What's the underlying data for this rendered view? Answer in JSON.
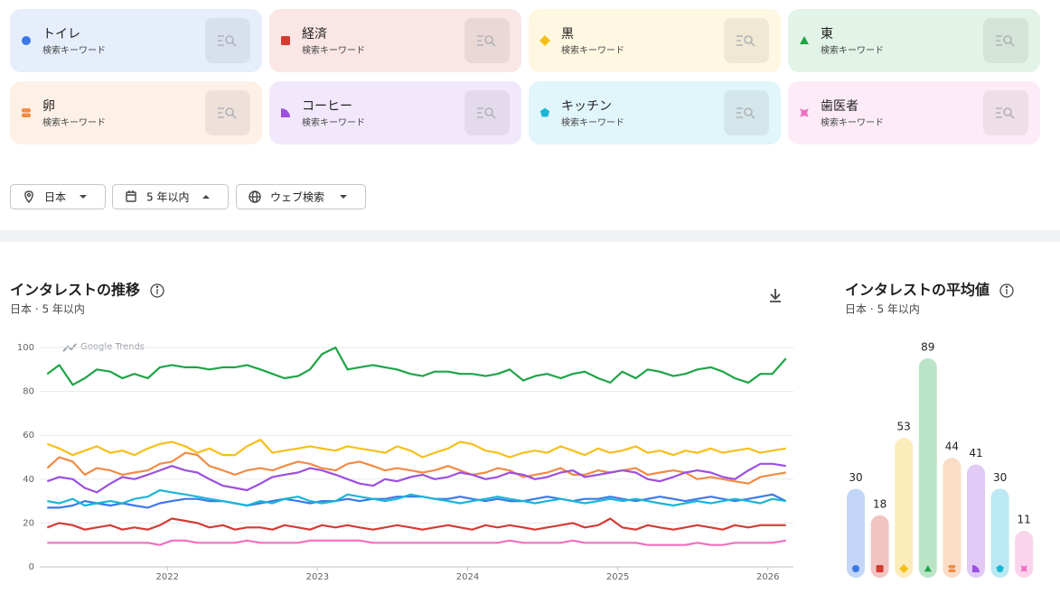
{
  "search_terms_subtitle": "検索キーワード",
  "filters": [
    "日本",
    "5 年以内",
    "ウェブ検索"
  ],
  "chart_data": [
    {
      "type": "line",
      "title": "インタレストの推移",
      "subtitle": "日本 · 5 年以内",
      "watermark": "Google Trends",
      "x": [
        2021.2,
        2021.28,
        2021.37,
        2021.45,
        2021.53,
        2021.62,
        2021.7,
        2021.78,
        2021.87,
        2021.95,
        2022.03,
        2022.12,
        2022.2,
        2022.28,
        2022.37,
        2022.45,
        2022.53,
        2022.62,
        2022.7,
        2022.78,
        2022.87,
        2022.95,
        2023.03,
        2023.12,
        2023.2,
        2023.28,
        2023.37,
        2023.45,
        2023.53,
        2023.62,
        2023.7,
        2023.78,
        2023.87,
        2023.95,
        2024.03,
        2024.12,
        2024.2,
        2024.28,
        2024.37,
        2024.45,
        2024.53,
        2024.62,
        2024.7,
        2024.78,
        2024.87,
        2024.95,
        2025.03,
        2025.12,
        2025.2,
        2025.28,
        2025.37,
        2025.45,
        2025.53,
        2025.62,
        2025.7,
        2025.78,
        2025.87,
        2025.95,
        2026.03,
        2026.12
      ],
      "xlim": [
        2021.15,
        2026.17
      ],
      "xticks": [
        2022,
        2023,
        2024,
        2025,
        2026
      ],
      "ylim": [
        0,
        100
      ],
      "yticks": [
        0,
        20,
        40,
        60,
        80,
        100
      ],
      "grid": true,
      "series": [
        {
          "name": "トイレ",
          "color": "#3b78e7",
          "values": [
            27,
            27,
            28,
            30,
            29,
            28,
            29,
            28,
            27,
            29,
            30,
            31,
            31,
            30,
            30,
            29,
            28,
            29,
            30,
            31,
            30,
            29,
            30,
            30,
            31,
            30,
            31,
            31,
            32,
            32,
            32,
            31,
            31,
            32,
            31,
            30,
            31,
            30,
            30,
            31,
            32,
            31,
            30,
            31,
            31,
            32,
            31,
            30,
            31,
            32,
            31,
            30,
            31,
            32,
            31,
            30,
            31,
            32,
            33,
            30
          ]
        },
        {
          "name": "経済",
          "color": "#d33b33",
          "values": [
            18,
            20,
            19,
            17,
            18,
            19,
            17,
            18,
            17,
            19,
            22,
            21,
            20,
            18,
            19,
            17,
            18,
            18,
            17,
            19,
            18,
            17,
            19,
            18,
            19,
            18,
            17,
            18,
            19,
            18,
            17,
            18,
            19,
            18,
            17,
            19,
            18,
            19,
            18,
            17,
            18,
            19,
            20,
            18,
            19,
            22,
            18,
            17,
            19,
            18,
            17,
            18,
            19,
            18,
            17,
            19,
            18,
            19,
            19,
            19
          ]
        },
        {
          "name": "黒",
          "color": "#f5bf1b",
          "values": [
            56,
            54,
            51,
            53,
            55,
            52,
            53,
            51,
            54,
            56,
            57,
            55,
            52,
            54,
            51,
            51,
            55,
            58,
            52,
            53,
            54,
            55,
            54,
            53,
            55,
            54,
            53,
            52,
            55,
            53,
            50,
            52,
            54,
            57,
            56,
            53,
            52,
            50,
            52,
            53,
            52,
            55,
            53,
            51,
            54,
            52,
            53,
            55,
            52,
            53,
            51,
            53,
            52,
            54,
            52,
            53,
            54,
            52,
            53,
            54
          ]
        },
        {
          "name": "東",
          "color": "#1ea446",
          "values": [
            88,
            92,
            83,
            86,
            90,
            89,
            86,
            88,
            86,
            91,
            92,
            91,
            91,
            90,
            91,
            91,
            92,
            90,
            88,
            86,
            87,
            90,
            97,
            100,
            90,
            91,
            92,
            91,
            90,
            88,
            87,
            89,
            89,
            88,
            88,
            87,
            88,
            90,
            85,
            87,
            88,
            86,
            88,
            89,
            86,
            84,
            89,
            86,
            90,
            89,
            87,
            88,
            90,
            91,
            89,
            86,
            84,
            88,
            88,
            95
          ]
        },
        {
          "name": "卵",
          "color": "#f28b44",
          "values": [
            45,
            50,
            48,
            42,
            45,
            44,
            42,
            43,
            44,
            47,
            48,
            52,
            51,
            46,
            44,
            42,
            44,
            45,
            44,
            46,
            48,
            47,
            45,
            44,
            47,
            48,
            46,
            44,
            45,
            44,
            43,
            44,
            46,
            44,
            42,
            43,
            45,
            44,
            41,
            42,
            43,
            45,
            42,
            42,
            44,
            43,
            44,
            45,
            42,
            43,
            44,
            43,
            40,
            41,
            40,
            39,
            38,
            41,
            42,
            43
          ]
        },
        {
          "name": "コーヒー",
          "color": "#9c4fe0",
          "values": [
            39,
            41,
            40,
            36,
            34,
            38,
            41,
            40,
            42,
            44,
            46,
            44,
            43,
            40,
            37,
            36,
            35,
            38,
            41,
            42,
            43,
            45,
            44,
            42,
            40,
            38,
            37,
            40,
            39,
            41,
            42,
            40,
            41,
            43,
            42,
            40,
            41,
            43,
            42,
            40,
            41,
            43,
            44,
            41,
            42,
            43,
            44,
            43,
            40,
            39,
            41,
            43,
            44,
            43,
            41,
            40,
            44,
            47,
            47,
            46
          ]
        },
        {
          "name": "キッチン",
          "color": "#19b6d6",
          "values": [
            30,
            29,
            31,
            28,
            29,
            30,
            29,
            31,
            32,
            35,
            34,
            33,
            32,
            31,
            30,
            29,
            28,
            30,
            29,
            31,
            32,
            30,
            29,
            30,
            33,
            32,
            31,
            30,
            31,
            33,
            32,
            31,
            30,
            29,
            30,
            31,
            32,
            31,
            30,
            29,
            30,
            31,
            30,
            29,
            30,
            31,
            30,
            31,
            30,
            29,
            28,
            29,
            30,
            29,
            30,
            31,
            30,
            29,
            31,
            30
          ]
        },
        {
          "name": "歯医者",
          "color": "#ef6fbf",
          "values": [
            11,
            11,
            11,
            11,
            11,
            11,
            11,
            11,
            11,
            10,
            12,
            12,
            11,
            11,
            11,
            11,
            12,
            11,
            11,
            11,
            11,
            12,
            12,
            12,
            12,
            12,
            11,
            11,
            11,
            11,
            11,
            11,
            11,
            11,
            11,
            11,
            11,
            12,
            11,
            11,
            11,
            11,
            12,
            11,
            11,
            11,
            11,
            11,
            10,
            10,
            10,
            10,
            11,
            10,
            10,
            11,
            11,
            11,
            11,
            12
          ]
        }
      ]
    },
    {
      "type": "bar",
      "title": "インタレストの平均値",
      "subtitle": "日本 · 5 年以内",
      "values": [
        30,
        18,
        53,
        89,
        44,
        41,
        30,
        11
      ]
    }
  ]
}
